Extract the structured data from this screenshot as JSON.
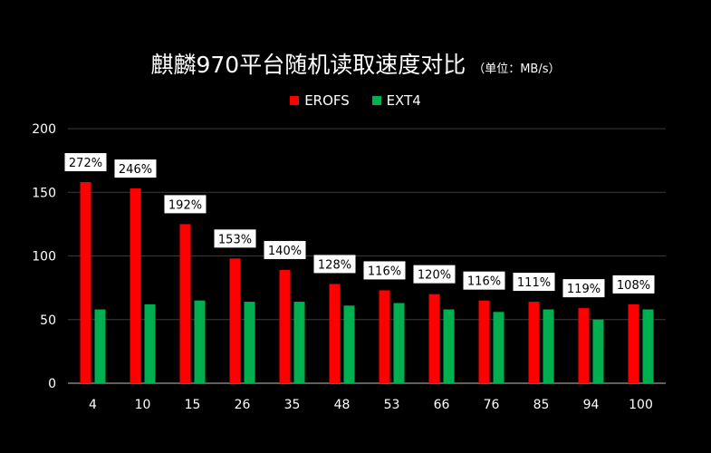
{
  "title": "麒麟970平台随机读取速度对比",
  "subtitle": "（单位：MB/s）",
  "chart_data": {
    "type": "bar",
    "title": "麒麟970平台随机读取速度对比",
    "subtitle": "（单位：MB/s）",
    "xlabel": "",
    "ylabel": "",
    "categories": [
      "4",
      "10",
      "15",
      "26",
      "35",
      "48",
      "53",
      "66",
      "76",
      "85",
      "94",
      "100"
    ],
    "series": [
      {
        "name": "EROFS",
        "color": "#ff0000",
        "values": [
          158,
          153,
          125,
          98,
          89,
          78,
          73,
          70,
          65,
          64,
          59,
          62
        ]
      },
      {
        "name": "EXT4",
        "color": "#00b050",
        "values": [
          58,
          62,
          65,
          64,
          64,
          61,
          63,
          58,
          56,
          58,
          50,
          58
        ]
      }
    ],
    "data_labels": [
      "272%",
      "246%",
      "192%",
      "153%",
      "140%",
      "128%",
      "116%",
      "120%",
      "116%",
      "111%",
      "119%",
      "108%"
    ],
    "ylim": [
      0,
      200
    ],
    "yticks": [
      "0",
      "50",
      "100",
      "150",
      "200"
    ],
    "grid": true,
    "legend_position": "top"
  }
}
